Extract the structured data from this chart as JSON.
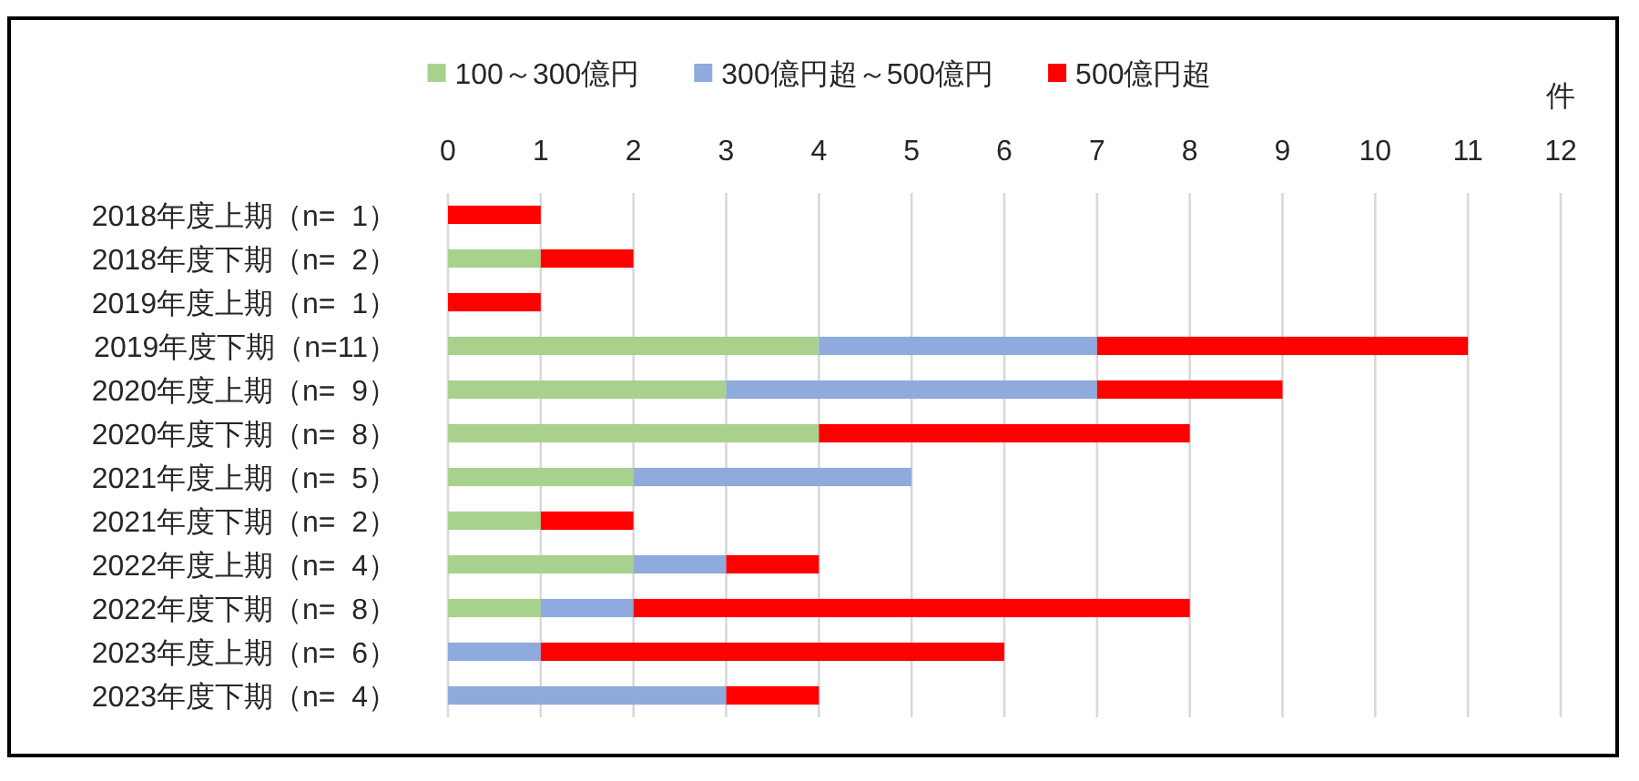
{
  "chart_data": {
    "type": "bar",
    "orientation": "horizontal",
    "stacked": true,
    "categories": [
      "2018年度上期（n=  1）",
      "2018年度下期（n=  2）",
      "2019年度上期（n=  1）",
      "2019年度下期（n=11）",
      "2020年度上期（n=  9）",
      "2020年度下期（n=  8）",
      "2021年度上期（n=  5）",
      "2021年度下期（n=  2）",
      "2022年度上期（n=  4）",
      "2022年度下期（n=  8）",
      "2023年度上期（n=  6）",
      "2023年度下期（n=  4）"
    ],
    "series": [
      {
        "name": "100～300億円",
        "color": "#a9d18e",
        "values": [
          0,
          1,
          0,
          4,
          3,
          4,
          2,
          1,
          2,
          1,
          0,
          0
        ]
      },
      {
        "name": "300億円超～500億円",
        "color": "#8faadc",
        "values": [
          0,
          0,
          0,
          3,
          4,
          0,
          3,
          0,
          1,
          1,
          1,
          3
        ]
      },
      {
        "name": "500億円超",
        "color": "#ff0000",
        "values": [
          1,
          1,
          1,
          4,
          2,
          4,
          0,
          1,
          1,
          6,
          5,
          1
        ]
      }
    ],
    "xlim": [
      0,
      12
    ],
    "xticks": [
      0,
      1,
      2,
      3,
      4,
      5,
      6,
      7,
      8,
      9,
      10,
      11,
      12
    ],
    "xlabel": "件",
    "grid": "x",
    "legend": "top"
  }
}
